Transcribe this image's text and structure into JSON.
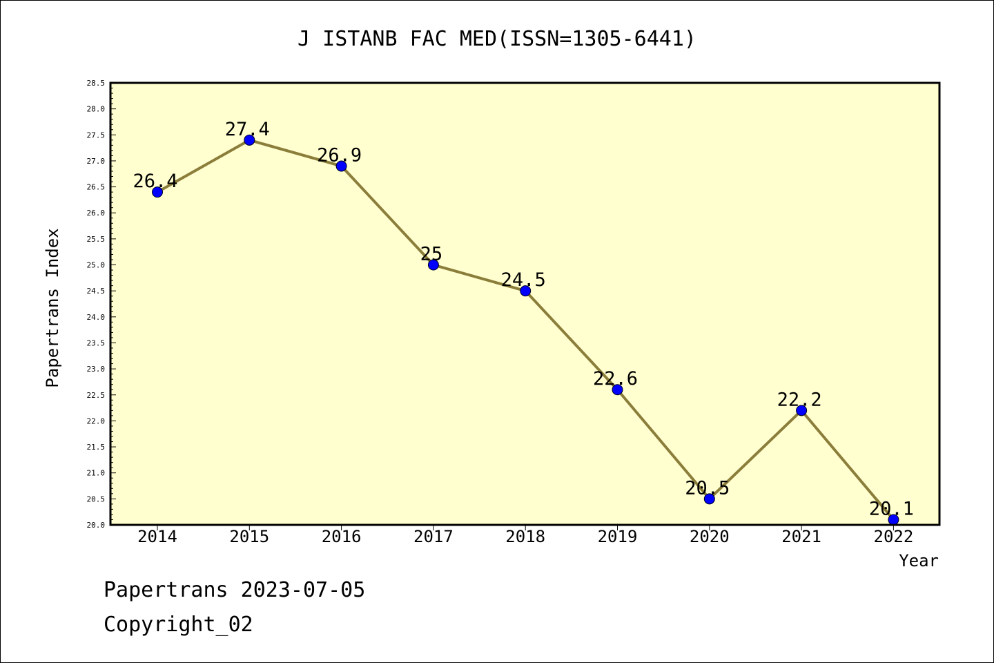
{
  "chart_data": {
    "type": "line",
    "title": "J ISTANB FAC MED(ISSN=1305-6441)",
    "xlabel": "Year",
    "ylabel": "Papertrans Index",
    "categories": [
      "2014",
      "2015",
      "2016",
      "2017",
      "2018",
      "2019",
      "2020",
      "2021",
      "2022"
    ],
    "series": [
      {
        "values": [
          26.4,
          27.4,
          26.9,
          25.0,
          24.5,
          22.6,
          20.5,
          22.2,
          20.1
        ],
        "labels": [
          "26.4",
          "27.4",
          "26.9",
          "25",
          "24.5",
          "22.6",
          "20.5",
          "22.2",
          "20.1"
        ]
      }
    ],
    "ylim": [
      20.0,
      28.5
    ],
    "yticks": [
      "20.0",
      "20.5",
      "21.0",
      "21.5",
      "22.0",
      "22.5",
      "23.0",
      "23.5",
      "24.0",
      "24.5",
      "25.0",
      "25.5",
      "26.0",
      "26.5",
      "27.0",
      "27.5",
      "28.0",
      "28.5"
    ],
    "grid": false,
    "colors": {
      "plot_background": "#ffffd0",
      "line": "#8b7d3a",
      "marker": "#0000ff"
    }
  },
  "footer": {
    "line1": "Papertrans 2023-07-05",
    "line2": "Copyright_02"
  }
}
